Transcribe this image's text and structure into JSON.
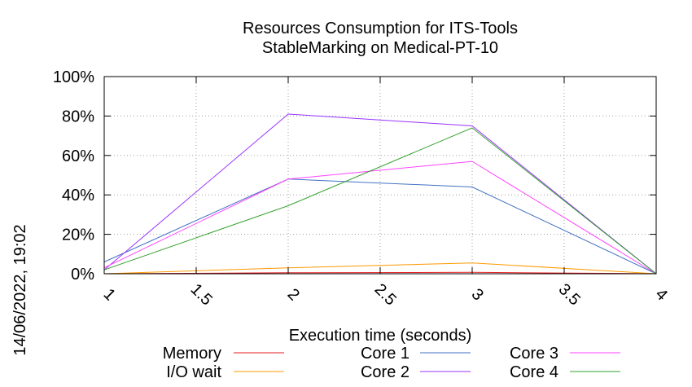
{
  "chart_data": {
    "type": "line",
    "title": "Resources Consumption for ITS-Tools",
    "subtitle": "StableMarking on Medical-PT-10",
    "xlabel": "Execution time (seconds)",
    "ylabel": "",
    "timestamp": "14/06/2022, 19:02",
    "x": [
      1,
      2,
      3,
      4
    ],
    "xlim": [
      1,
      4
    ],
    "ylim": [
      0,
      100
    ],
    "x_ticks": [
      "1",
      "1.5",
      "2",
      "2.5",
      "3",
      "3.5",
      "4"
    ],
    "y_ticks": [
      "0%",
      "20%",
      "40%",
      "60%",
      "80%",
      "100%"
    ],
    "grid": true,
    "legend_position": "bottom",
    "series": [
      {
        "name": "Memory",
        "color": "#e41a1c",
        "values": [
          0,
          0.5,
          0.7,
          0
        ]
      },
      {
        "name": "I/O wait",
        "color": "#ff9900",
        "values": [
          0,
          3,
          5.5,
          0
        ]
      },
      {
        "name": "Core 1",
        "color": "#4472c4",
        "values": [
          6,
          48,
          44,
          0
        ]
      },
      {
        "name": "Core 2",
        "color": "#9933ff",
        "values": [
          2,
          81,
          75,
          0
        ]
      },
      {
        "name": "Core 3",
        "color": "#ff44ff",
        "values": [
          3,
          48,
          57,
          0
        ]
      },
      {
        "name": "Core 4",
        "color": "#33a02c",
        "values": [
          2,
          34.5,
          74,
          0
        ]
      }
    ]
  }
}
